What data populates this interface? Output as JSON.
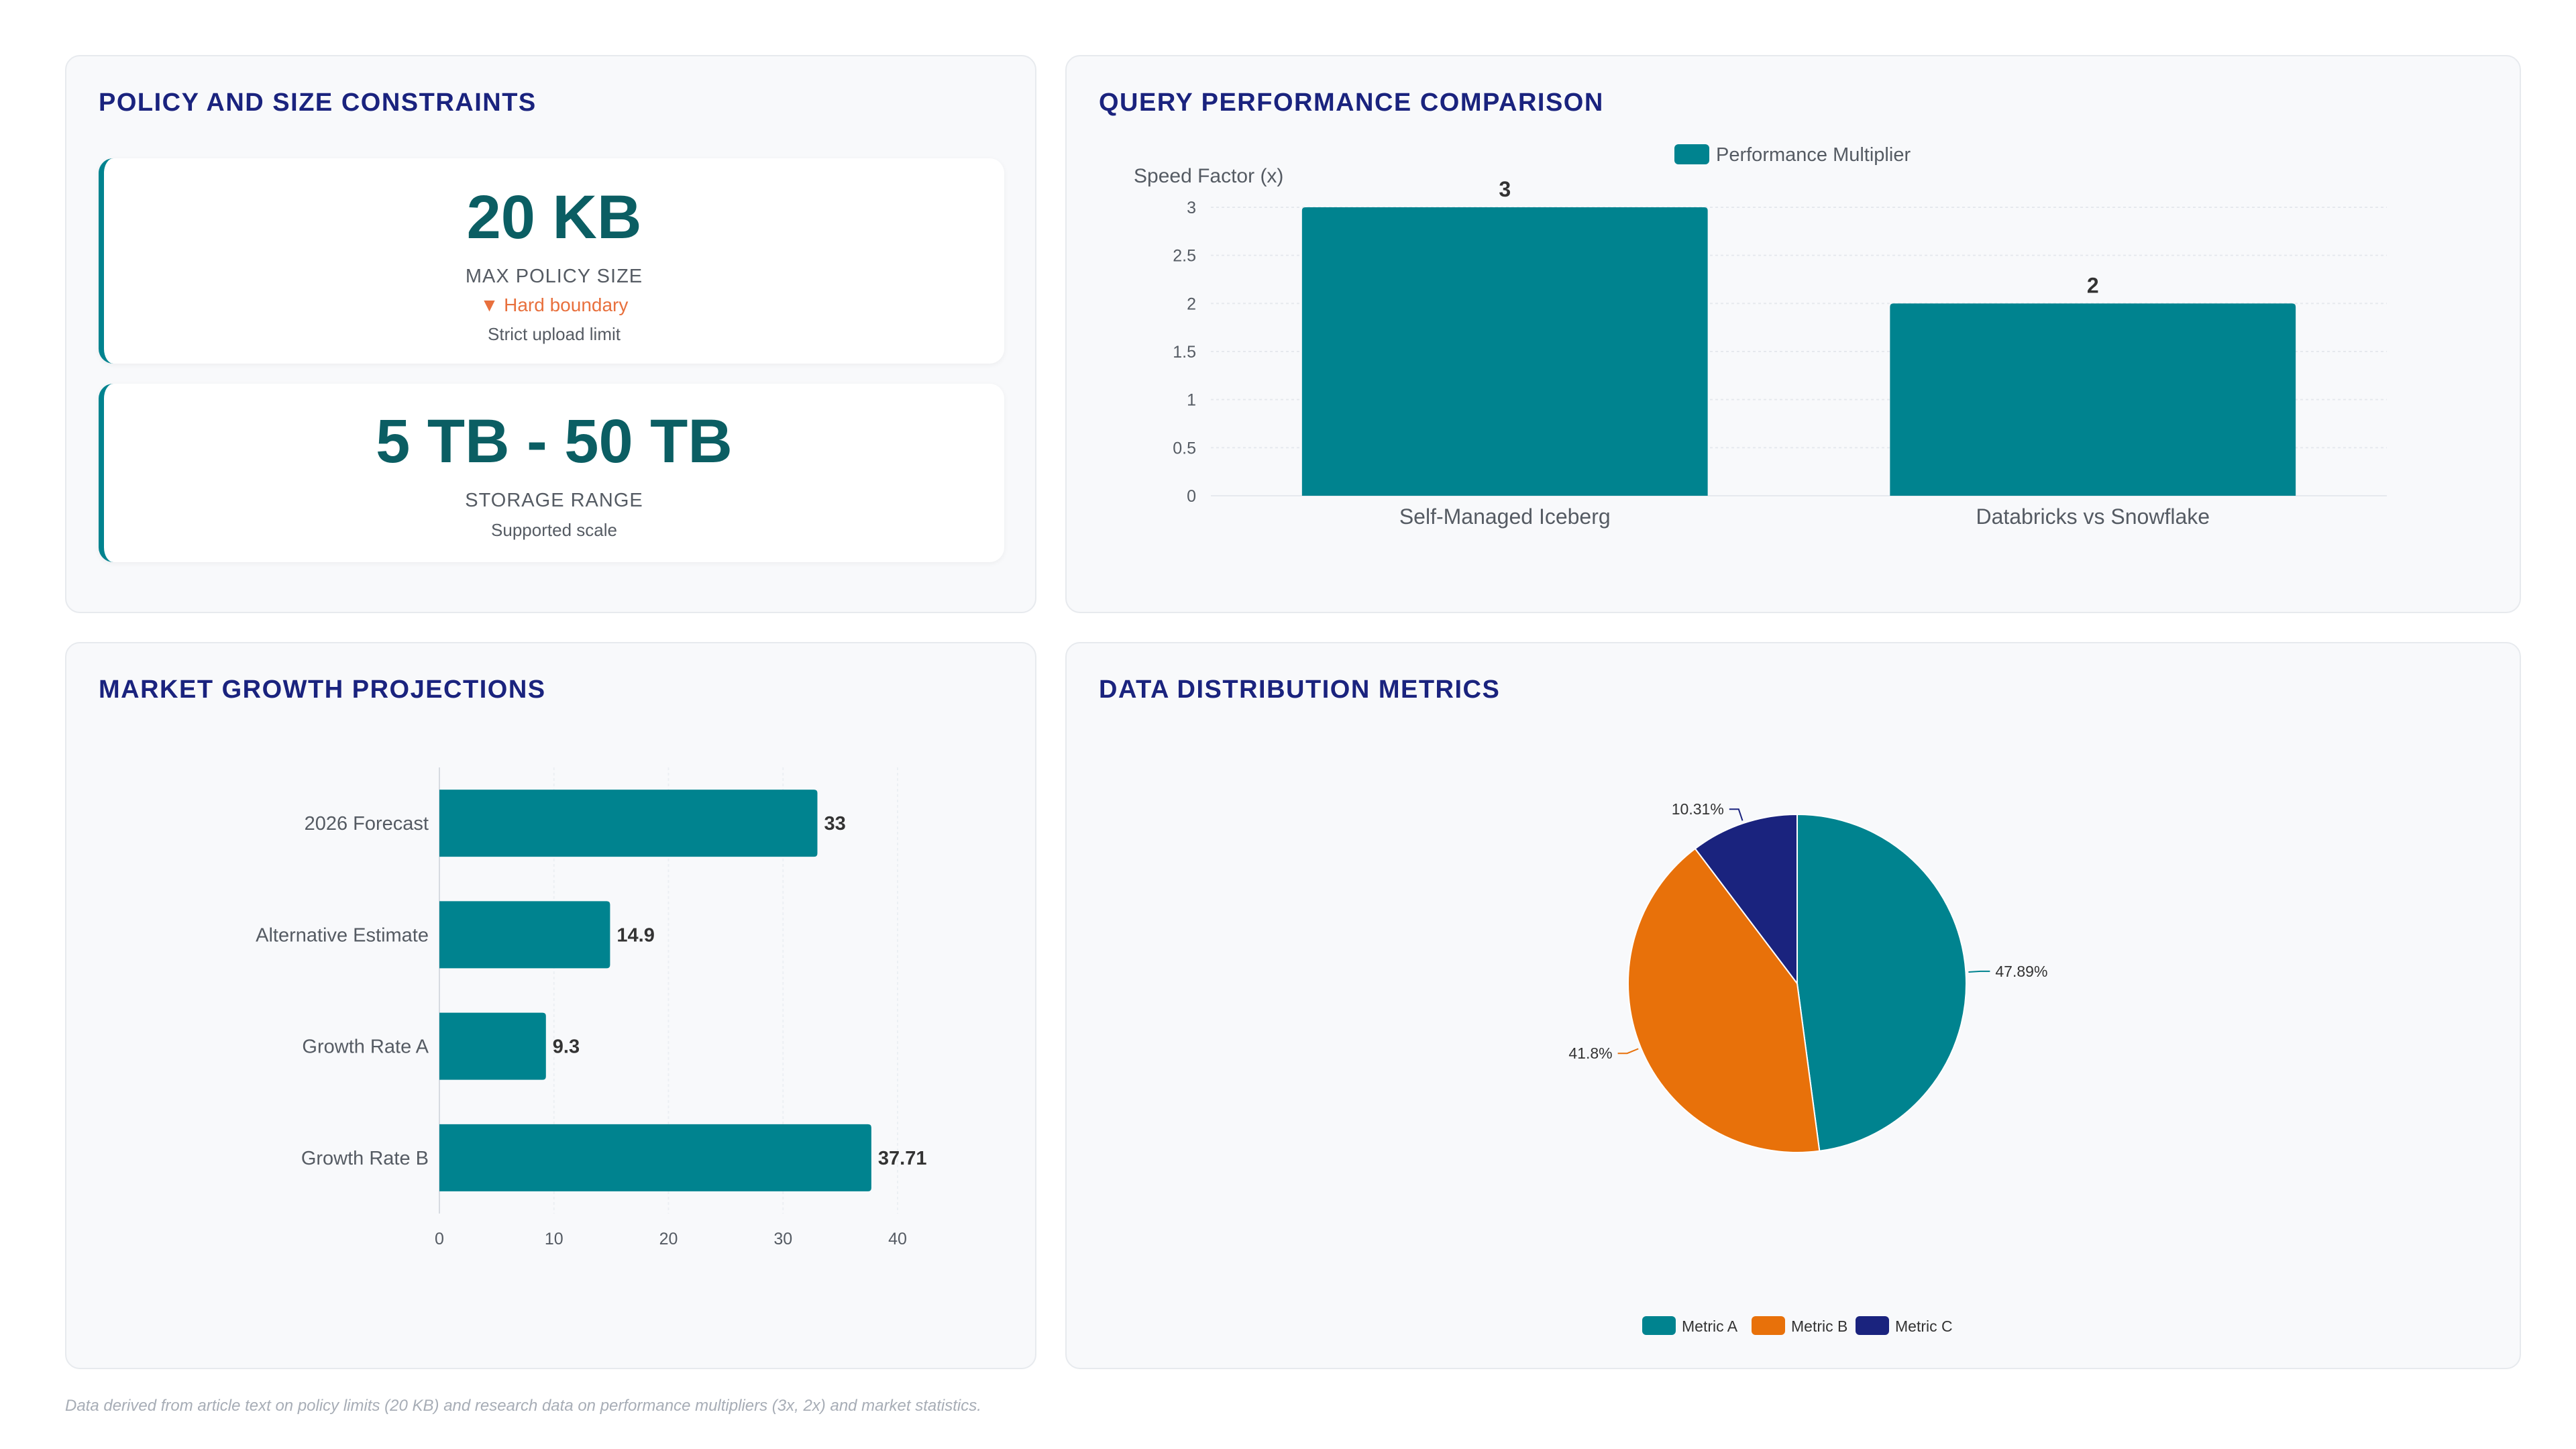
{
  "policy_panel": {
    "title": "POLICY AND SIZE CONSTRAINTS",
    "kpis": [
      {
        "value": "20 KB",
        "label": "MAX POLICY SIZE",
        "trend": "▼ Hard boundary",
        "sub": "Strict upload limit"
      },
      {
        "value": "5 TB - 50 TB",
        "label": "STORAGE RANGE",
        "sub": "Supported scale"
      }
    ]
  },
  "query_panel": {
    "title": "QUERY PERFORMANCE COMPARISON"
  },
  "market_panel": {
    "title": "MARKET GROWTH PROJECTIONS"
  },
  "distribution_panel": {
    "title": "DATA DISTRIBUTION METRICS"
  },
  "footnote": "Data derived from article text on policy limits (20 KB) and research data on performance multipliers (3x, 2x) and market statistics.",
  "colors": {
    "teal": "#00838f",
    "orange": "#e8710a",
    "navy": "#1a237e"
  },
  "chart_data": [
    {
      "type": "bar",
      "orientation": "vertical",
      "categories": [
        "Self-Managed Iceberg",
        "Databricks vs Snowflake"
      ],
      "series": [
        {
          "name": "Performance Multiplier",
          "values": [
            3,
            2
          ]
        }
      ],
      "ylabel": "Speed Factor (x)",
      "xlabel": "",
      "ylim": [
        0,
        3
      ],
      "yticks": [
        0,
        0.5,
        1,
        1.5,
        2,
        2.5,
        3
      ],
      "legend": "top",
      "grid": true
    },
    {
      "type": "bar",
      "orientation": "horizontal",
      "categories": [
        "2026 Forecast",
        "Alternative Estimate",
        "Growth Rate A",
        "Growth Rate B"
      ],
      "values": [
        33,
        14.9,
        9.3,
        37.71
      ],
      "xlim": [
        0,
        40
      ],
      "xticks": [
        0,
        10,
        20,
        30,
        40
      ],
      "grid": true
    },
    {
      "type": "pie",
      "labels": [
        "Metric A",
        "Metric B",
        "Metric C"
      ],
      "values": [
        47.89,
        41.8,
        10.31
      ],
      "value_labels": [
        "47.89%",
        "41.8%",
        "10.31%"
      ],
      "legend": "bottom"
    }
  ]
}
